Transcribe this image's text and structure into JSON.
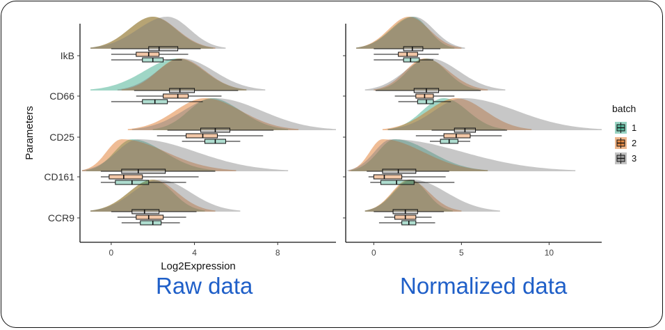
{
  "chart_data": [
    {
      "type": "violin",
      "subtype": "half-violin (ridgeline) with boxplots per batch",
      "caption": "Raw data",
      "xlabel": "Log2Expression",
      "ylabel": "Parameters",
      "xlim": [
        -1.5,
        10.8
      ],
      "xticks": [
        0,
        4,
        8
      ],
      "categories": [
        "IkB",
        "CD66",
        "CD25",
        "CD161",
        "CCR9"
      ],
      "series": [
        {
          "name": "1",
          "color": "#1b9e77",
          "stats": [
            {
              "param": "IkB",
              "mode": 2.0,
              "whisker_low": 0.0,
              "q1": 1.5,
              "median": 2.0,
              "q3": 2.5,
              "whisker_high": 3.4,
              "tail_low": -1.0,
              "tail_high": 4.9
            },
            {
              "param": "CD66",
              "mode": 3.2,
              "whisker_low": 0.0,
              "q1": 1.5,
              "median": 2.1,
              "q3": 2.7,
              "whisker_high": 4.4,
              "tail_low": -1.0,
              "tail_high": 6.5
            },
            {
              "param": "CD25",
              "mode": 4.8,
              "whisker_low": 3.4,
              "q1": 4.5,
              "median": 5.0,
              "q3": 5.5,
              "whisker_high": 6.2,
              "tail_low": 2.0,
              "tail_high": 8.5
            },
            {
              "param": "CD161",
              "mode": 1.0,
              "whisker_low": -0.5,
              "q1": 0.2,
              "median": 1.0,
              "q3": 1.8,
              "whisker_high": 3.6,
              "tail_low": -1.2,
              "tail_high": 5.0
            },
            {
              "param": "CCR9",
              "mode": 2.0,
              "whisker_low": 0.5,
              "q1": 1.4,
              "median": 2.0,
              "q3": 2.4,
              "whisker_high": 3.3,
              "tail_low": -1.0,
              "tail_high": 4.5
            }
          ]
        },
        {
          "name": "2",
          "color": "#d95f02",
          "stats": [
            {
              "param": "IkB",
              "mode": 2.0,
              "whisker_low": 0.0,
              "q1": 1.2,
              "median": 1.8,
              "q3": 2.3,
              "whisker_high": 3.7,
              "tail_low": -1.0,
              "tail_high": 5.0
            },
            {
              "param": "CD66",
              "mode": 3.3,
              "whisker_low": 1.2,
              "q1": 2.5,
              "median": 3.2,
              "q3": 3.7,
              "whisker_high": 5.3,
              "tail_low": 0.5,
              "tail_high": 6.5
            },
            {
              "param": "CD25",
              "mode": 4.5,
              "whisker_low": 2.2,
              "q1": 3.6,
              "median": 4.4,
              "q3": 5.1,
              "whisker_high": 7.3,
              "tail_low": 0.8,
              "tail_high": 9.0
            },
            {
              "param": "CD161",
              "mode": 0.5,
              "whisker_low": -0.5,
              "q1": -0.1,
              "median": 0.6,
              "q3": 1.5,
              "whisker_high": 4.2,
              "tail_low": -1.4,
              "tail_high": 6.0
            },
            {
              "param": "CCR9",
              "mode": 2.0,
              "whisker_low": 0.3,
              "q1": 1.2,
              "median": 1.8,
              "q3": 2.5,
              "whisker_high": 3.6,
              "tail_low": -1.0,
              "tail_high": 5.0
            }
          ]
        },
        {
          "name": "3",
          "color": "#7a7a7a",
          "stats": [
            {
              "param": "IkB",
              "mode": 2.7,
              "whisker_low": 0.0,
              "q1": 1.8,
              "median": 2.3,
              "q3": 3.2,
              "whisker_high": 4.3,
              "tail_low": -1.0,
              "tail_high": 5.5
            },
            {
              "param": "CD66",
              "mode": 3.4,
              "whisker_low": 1.1,
              "q1": 2.8,
              "median": 3.3,
              "q3": 4.0,
              "whisker_high": 6.1,
              "tail_low": 0.3,
              "tail_high": 7.4
            },
            {
              "param": "CD25",
              "mode": 5.0,
              "whisker_low": 2.7,
              "q1": 4.3,
              "median": 5.0,
              "q3": 5.7,
              "whisker_high": 7.8,
              "tail_low": 1.0,
              "tail_high": 10.8
            },
            {
              "param": "CD161",
              "mode": 1.3,
              "whisker_low": -0.5,
              "q1": 0.5,
              "median": 1.3,
              "q3": 2.6,
              "whisker_high": 5.0,
              "tail_low": -1.4,
              "tail_high": 8.5
            },
            {
              "param": "CCR9",
              "mode": 2.3,
              "whisker_low": 0.0,
              "q1": 1.0,
              "median": 1.6,
              "q3": 2.3,
              "whisker_high": 4.1,
              "tail_low": -1.0,
              "tail_high": 6.2
            }
          ]
        }
      ]
    },
    {
      "type": "violin",
      "subtype": "half-violin (ridgeline) with boxplots per batch",
      "caption": "Normalized data",
      "xlabel": "",
      "ylabel": "",
      "xlim": [
        -1.6,
        13.0
      ],
      "xticks": [
        0,
        5,
        10
      ],
      "categories": [
        "IkB",
        "CD66",
        "CD25",
        "CD161",
        "CCR9"
      ],
      "series": [
        {
          "name": "1",
          "color": "#1b9e77",
          "stats": [
            {
              "param": "IkB",
              "mode": 2.2,
              "whisker_low": 0.0,
              "q1": 1.7,
              "median": 2.1,
              "q3": 2.6,
              "whisker_high": 3.4,
              "tail_low": -1.0,
              "tail_high": 4.6
            },
            {
              "param": "CD66",
              "mode": 3.0,
              "whisker_low": 1.4,
              "q1": 2.5,
              "median": 3.0,
              "q3": 3.4,
              "whisker_high": 4.4,
              "tail_low": 0.2,
              "tail_high": 6.0
            },
            {
              "param": "CD25",
              "mode": 4.0,
              "whisker_low": 3.2,
              "q1": 3.8,
              "median": 4.3,
              "q3": 4.8,
              "whisker_high": 5.5,
              "tail_low": 0.8,
              "tail_high": 7.5
            },
            {
              "param": "CD161",
              "mode": 1.2,
              "whisker_low": -0.2,
              "q1": 0.4,
              "median": 1.3,
              "q3": 2.3,
              "whisker_high": 4.6,
              "tail_low": -1.3,
              "tail_high": 6.5
            },
            {
              "param": "CCR9",
              "mode": 2.1,
              "whisker_low": 0.3,
              "q1": 1.6,
              "median": 2.0,
              "q3": 2.4,
              "whisker_high": 3.5,
              "tail_low": -0.5,
              "tail_high": 4.5
            }
          ]
        },
        {
          "name": "2",
          "color": "#d95f02",
          "stats": [
            {
              "param": "IkB",
              "mode": 2.0,
              "whisker_low": 0.0,
              "q1": 1.4,
              "median": 1.9,
              "q3": 2.5,
              "whisker_high": 3.7,
              "tail_low": -1.0,
              "tail_high": 5.0
            },
            {
              "param": "CD66",
              "mode": 2.9,
              "whisker_low": 1.2,
              "q1": 2.4,
              "median": 2.9,
              "q3": 3.4,
              "whisker_high": 4.6,
              "tail_low": 0.0,
              "tail_high": 6.5
            },
            {
              "param": "CD25",
              "mode": 4.7,
              "whisker_low": 2.4,
              "q1": 4.0,
              "median": 4.7,
              "q3": 5.5,
              "whisker_high": 7.3,
              "tail_low": 0.5,
              "tail_high": 9.0
            },
            {
              "param": "CD161",
              "mode": 0.5,
              "whisker_low": -0.3,
              "q1": 0.0,
              "median": 0.6,
              "q3": 1.6,
              "whisker_high": 4.1,
              "tail_low": -1.4,
              "tail_high": 6.5
            },
            {
              "param": "CCR9",
              "mode": 2.0,
              "whisker_low": 0.6,
              "q1": 1.2,
              "median": 1.8,
              "q3": 2.4,
              "whisker_high": 3.3,
              "tail_low": -0.5,
              "tail_high": 5.0
            }
          ]
        },
        {
          "name": "3",
          "color": "#7a7a7a",
          "stats": [
            {
              "param": "IkB",
              "mode": 2.3,
              "whisker_low": 0.0,
              "q1": 1.7,
              "median": 2.2,
              "q3": 2.8,
              "whisker_high": 3.8,
              "tail_low": -1.0,
              "tail_high": 5.2
            },
            {
              "param": "CD66",
              "mode": 3.2,
              "whisker_low": 0.1,
              "q1": 2.3,
              "median": 3.0,
              "q3": 3.7,
              "whisker_high": 6.1,
              "tail_low": -0.5,
              "tail_high": 7.5
            },
            {
              "param": "CD25",
              "mode": 5.1,
              "whisker_low": 3.3,
              "q1": 4.6,
              "median": 5.2,
              "q3": 5.8,
              "whisker_high": 7.6,
              "tail_low": 0.8,
              "tail_high": 13.0
            },
            {
              "param": "CD161",
              "mode": 1.0,
              "whisker_low": -0.4,
              "q1": 0.5,
              "median": 1.4,
              "q3": 2.4,
              "whisker_high": 4.3,
              "tail_low": -1.5,
              "tail_high": 11.5
            },
            {
              "param": "CCR9",
              "mode": 2.2,
              "whisker_low": 0.0,
              "q1": 1.1,
              "median": 1.8,
              "q3": 2.5,
              "whisker_high": 4.0,
              "tail_low": -0.5,
              "tail_high": 7.2
            }
          ]
        }
      ]
    }
  ],
  "legend": {
    "title": "batch",
    "placement": "right",
    "items": [
      {
        "label": "1",
        "color": "#1b9e77"
      },
      {
        "label": "2",
        "color": "#d95f02"
      },
      {
        "label": "3",
        "color": "#7a7a7a"
      }
    ]
  },
  "captions": {
    "left": "Raw data",
    "right": "Normalized data"
  }
}
